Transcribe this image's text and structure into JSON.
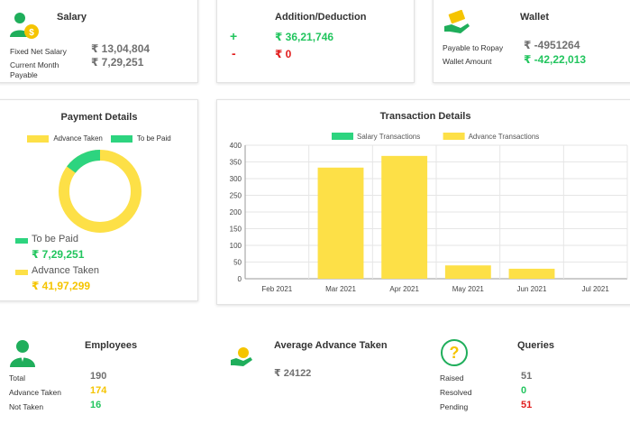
{
  "salary": {
    "title": "Salary",
    "fixed_net_label": "Fixed Net Salary",
    "fixed_net_value": "₹ 13,04,804",
    "current_month_label_1": "Current Month",
    "current_month_label_2": "Payable",
    "current_month_value": "₹ 7,29,251"
  },
  "addition": {
    "title": "Addition/Deduction",
    "plus_sign": "+",
    "plus_value": "₹ 36,21,746",
    "minus_sign": "-",
    "minus_value": "₹ 0"
  },
  "wallet": {
    "title": "Wallet",
    "payable_label": "Payable to Ropay",
    "payable_value": "₹ -4951264",
    "amount_label": "Wallet Amount",
    "amount_value": "₹ -42,22,013"
  },
  "payment": {
    "title": "Payment Details",
    "legend_advance": "Advance Taken",
    "legend_paid": "To be Paid",
    "to_be_paid_label": "To be Paid",
    "to_be_paid_value": "₹ 7,29,251",
    "advance_label": "Advance Taken",
    "advance_value": "₹ 41,97,299",
    "colors": {
      "advance": "#fde047",
      "paid": "#2dd47f"
    }
  },
  "chart_data": {
    "type": "bar",
    "title": "Transaction Details",
    "categories": [
      "Feb 2021",
      "Mar 2021",
      "Apr 2021",
      "May 2021",
      "Jun 2021",
      "Jul 2021"
    ],
    "series": [
      {
        "name": "Salary Transactions",
        "values": [
          0,
          0,
          0,
          0,
          0,
          0
        ],
        "color": "#2dd47f"
      },
      {
        "name": "Advance Transactions",
        "values": [
          0,
          333,
          368,
          40,
          30,
          0
        ],
        "color": "#fde047"
      }
    ],
    "ylim": [
      0,
      400
    ],
    "yticks": [
      "0",
      "50",
      "100",
      "150",
      "200",
      "250",
      "300",
      "350",
      "400"
    ],
    "grid": true,
    "legend": "top"
  },
  "employees": {
    "title": "Employees",
    "total_label": "Total",
    "total_value": "190",
    "advance_label": "Advance Taken",
    "advance_value": "174",
    "not_taken_label": "Not Taken",
    "not_taken_value": "16"
  },
  "average": {
    "title": "Average Advance Taken",
    "value": "₹ 24122"
  },
  "queries": {
    "title": "Queries",
    "icon_glyph": "?",
    "raised_label": "Raised",
    "raised_value": "51",
    "resolved_label": "Resolved",
    "resolved_value": "0",
    "pending_label": "Pending",
    "pending_value": "51"
  }
}
